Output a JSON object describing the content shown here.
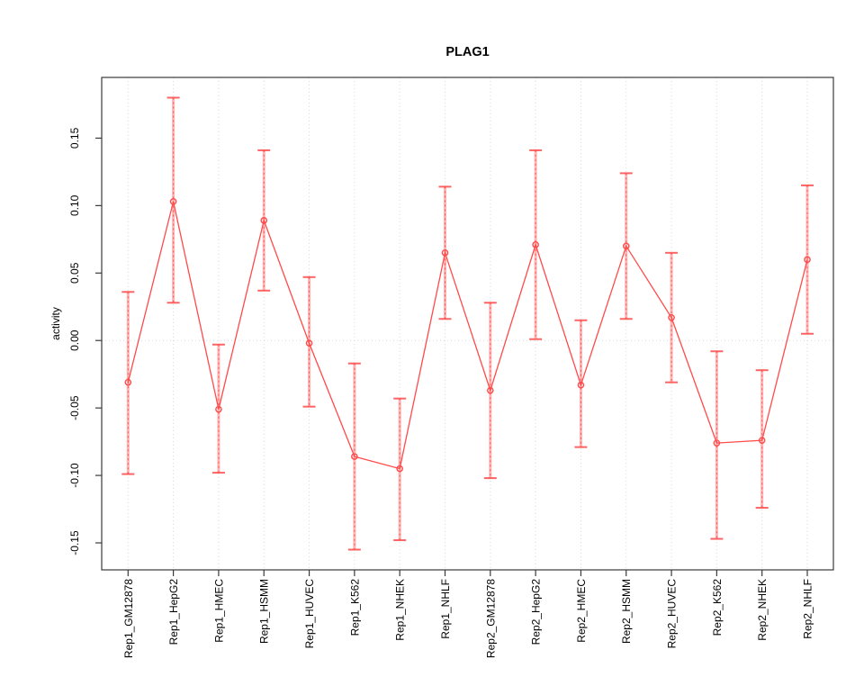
{
  "figure": {
    "title": "PLAG1",
    "ylabel": "activity"
  },
  "chart_data": {
    "type": "line",
    "title": "PLAG1",
    "xlabel": "",
    "ylabel": "activity",
    "legend": "none",
    "grid": "vertical-dotted",
    "zero_line": true,
    "marker": "open-circle",
    "error_bars": true,
    "ylim": [
      -0.17,
      0.195
    ],
    "yticks": [
      {
        "value": 0.15,
        "label": "0.15"
      },
      {
        "value": 0.1,
        "label": "0.10"
      },
      {
        "value": 0.05,
        "label": "0.05"
      },
      {
        "value": 0.0,
        "label": "0.00"
      },
      {
        "value": -0.05,
        "label": "-0.05"
      },
      {
        "value": -0.1,
        "label": "-0.10"
      },
      {
        "value": -0.15,
        "label": "-0.15"
      }
    ],
    "categories": [
      "Rep1_GM12878",
      "Rep1_HepG2",
      "Rep1_HMEC",
      "Rep1_HSMM",
      "Rep1_HUVEC",
      "Rep1_K562",
      "Rep1_NHEK",
      "Rep1_NHLF",
      "Rep2_GM12878",
      "Rep2_HepG2",
      "Rep2_HMEC",
      "Rep2_HSMM",
      "Rep2_HUVEC",
      "Rep2_K562",
      "Rep2_NHEK",
      "Rep2_NHLF"
    ],
    "series": [
      {
        "name": "activity",
        "values": [
          -0.031,
          0.103,
          -0.051,
          0.089,
          -0.002,
          -0.086,
          -0.095,
          0.065,
          -0.037,
          0.071,
          -0.033,
          0.07,
          0.017,
          -0.076,
          -0.074,
          0.06
        ],
        "err_hi": [
          0.036,
          0.18,
          -0.003,
          0.141,
          0.047,
          -0.017,
          -0.043,
          0.114,
          0.028,
          0.141,
          0.015,
          0.124,
          0.065,
          -0.008,
          -0.022,
          0.115
        ],
        "err_lo": [
          -0.099,
          0.028,
          -0.098,
          0.037,
          -0.049,
          -0.155,
          -0.148,
          0.016,
          -0.102,
          0.001,
          -0.079,
          0.016,
          -0.031,
          -0.147,
          -0.124,
          0.005
        ]
      }
    ],
    "colors": {
      "series": "#ff4a4a",
      "error_band": "#ffb3b3",
      "grid": "#d9d9d9",
      "axis": "#3a3a3a",
      "text": "#000000",
      "background": "#ffffff"
    }
  }
}
